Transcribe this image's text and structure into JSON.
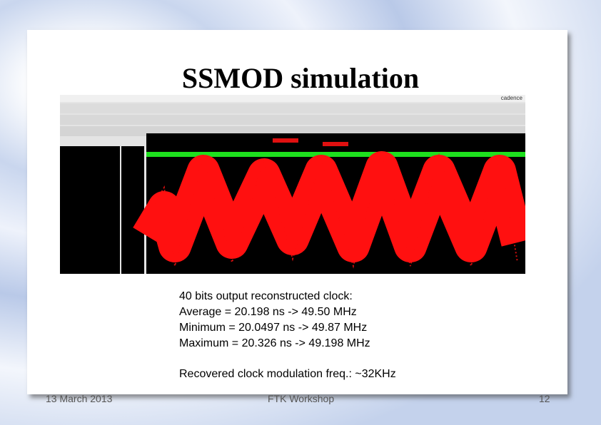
{
  "title": "SSMOD simulation",
  "screenshot": {
    "logo": "cadence"
  },
  "body": {
    "lines": [
      "40 bits output reconstructed clock:",
      "Average = 20.198 ns -> 49.50 MHz",
      "Minimum = 20.0497 ns -> 49.87 MHz",
      "Maximum = 20.326 ns -> 49.198 MHz"
    ],
    "note": "Recovered clock modulation freq.: ~32KHz"
  },
  "footer": {
    "date": "13 March 2013",
    "event": "FTK Workshop",
    "page": "12"
  }
}
